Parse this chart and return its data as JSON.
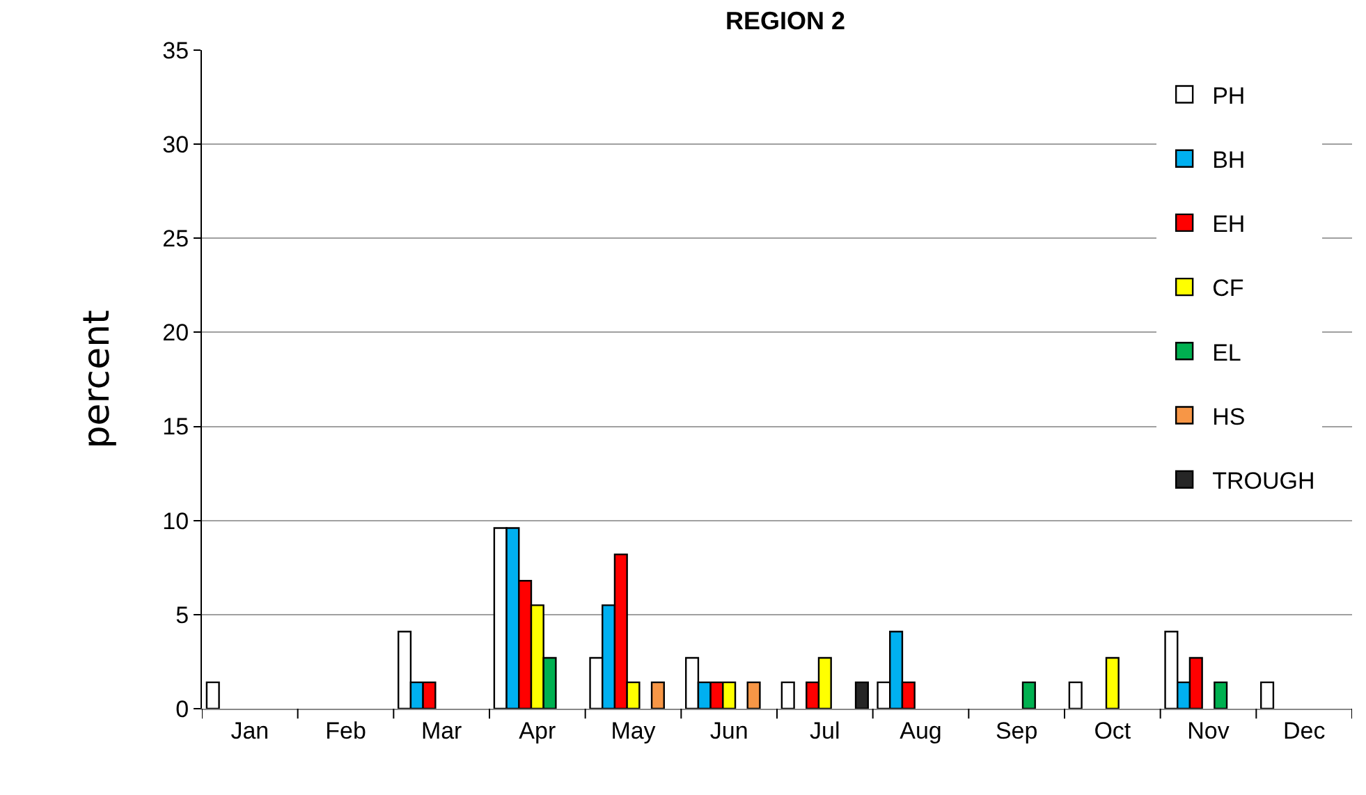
{
  "chart_data": {
    "type": "bar",
    "title": "REGION 2",
    "ylabel": "percent",
    "categories": [
      "Jan",
      "Feb",
      "Mar",
      "Apr",
      "May",
      "Jun",
      "Jul",
      "Aug",
      "Sep",
      "Oct",
      "Nov",
      "Dec"
    ],
    "series": [
      {
        "name": "PH",
        "color": "#ffffff",
        "values": [
          1.4,
          null,
          4.1,
          9.6,
          2.7,
          2.7,
          1.4,
          1.4,
          null,
          1.4,
          4.1,
          1.4
        ]
      },
      {
        "name": "BH",
        "color": "#00b0f0",
        "values": [
          null,
          null,
          1.4,
          9.6,
          5.5,
          1.4,
          null,
          4.1,
          null,
          null,
          1.4,
          null
        ]
      },
      {
        "name": "EH",
        "color": "#ff0000",
        "values": [
          null,
          null,
          1.4,
          6.8,
          8.2,
          1.4,
          1.4,
          1.4,
          null,
          null,
          2.7,
          null
        ]
      },
      {
        "name": "CF",
        "color": "#ffff00",
        "values": [
          null,
          null,
          null,
          5.5,
          1.4,
          1.4,
          2.7,
          null,
          null,
          2.7,
          null,
          null
        ]
      },
      {
        "name": "EL",
        "color": "#00b050",
        "values": [
          null,
          null,
          null,
          2.7,
          null,
          null,
          null,
          null,
          1.4,
          null,
          1.4,
          null
        ]
      },
      {
        "name": "HS",
        "color": "#f79646",
        "values": [
          null,
          null,
          null,
          null,
          1.4,
          1.4,
          null,
          null,
          null,
          null,
          null,
          null
        ]
      },
      {
        "name": "TROUGH",
        "color": "#262626",
        "values": [
          null,
          null,
          null,
          null,
          null,
          null,
          1.4,
          null,
          null,
          null,
          null,
          null
        ]
      }
    ],
    "ylim": [
      0,
      35
    ],
    "yticks": [
      0,
      5,
      10,
      15,
      20,
      25,
      30,
      35
    ],
    "grid": "y",
    "legend": "right"
  }
}
